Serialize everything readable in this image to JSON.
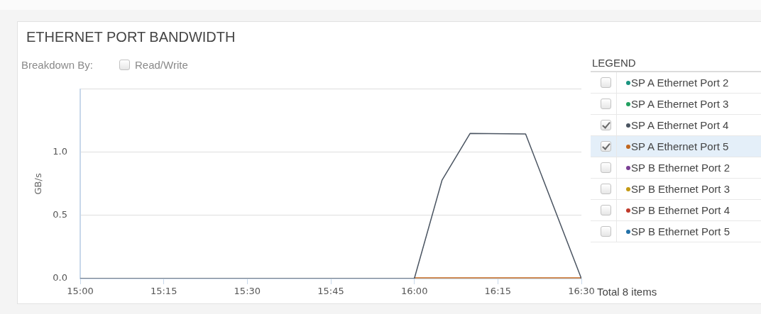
{
  "chart_data": {
    "type": "line",
    "title": "ETHERNET PORT BANDWIDTH",
    "ylabel": "GB/s",
    "legend_title": "LEGEND",
    "annotations": [
      "Breakdown By:",
      "Read/Write",
      "Total 8 items"
    ],
    "x": [
      15,
      16,
      16.083,
      16.167,
      16.333,
      16.5
    ],
    "series": [
      {
        "name": "SP A Ethernet Port 2",
        "color": "#1a9480",
        "values": [
          null,
          null,
          null,
          null,
          null,
          null
        ]
      },
      {
        "name": "SP A Ethernet Port 3",
        "color": "#22a060",
        "values": [
          null,
          null,
          null,
          null,
          null,
          null
        ]
      },
      {
        "name": "SP A Ethernet Port 4",
        "color": "#4a5461",
        "values": [
          0,
          0,
          0.78,
          1.15,
          1.145,
          0
        ]
      },
      {
        "name": "SP A Ethernet Port 5",
        "color": "#c0661e",
        "values": [
          null,
          0.005,
          0.005,
          0.005,
          0.005,
          0.005
        ]
      },
      {
        "name": "SP B Ethernet Port 2",
        "color": "#7a3f94",
        "values": [
          null,
          null,
          null,
          null,
          null,
          null
        ]
      },
      {
        "name": "SP B Ethernet Port 3",
        "color": "#c49a14",
        "values": [
          null,
          null,
          null,
          null,
          null,
          null
        ]
      },
      {
        "name": "SP B Ethernet Port 4",
        "color": "#c03a2b",
        "values": [
          null,
          null,
          null,
          null,
          null,
          null
        ]
      },
      {
        "name": "SP B Ethernet Port 5",
        "color": "#2471a8",
        "values": [
          null,
          null,
          null,
          null,
          null,
          null
        ]
      }
    ],
    "xlim": [
      15,
      16.5
    ],
    "xticks": [
      {
        "value": 15,
        "label": "15:00"
      },
      {
        "value": 15.25,
        "label": "15:15"
      },
      {
        "value": 15.5,
        "label": "15:30"
      },
      {
        "value": 15.75,
        "label": "15:45"
      },
      {
        "value": 16,
        "label": "16:00"
      },
      {
        "value": 16.25,
        "label": "16:15"
      },
      {
        "value": 16.5,
        "label": "16:30"
      }
    ],
    "ylim": [
      0,
      1.5
    ],
    "yticks": [
      {
        "value": 0,
        "label": "0.0"
      },
      {
        "value": 0.5,
        "label": "0.5"
      },
      {
        "value": 1,
        "label": "1.0"
      },
      {
        "value": 1.5,
        "label": null
      }
    ],
    "grid": "y",
    "legend": "right",
    "marker": "none"
  }
}
